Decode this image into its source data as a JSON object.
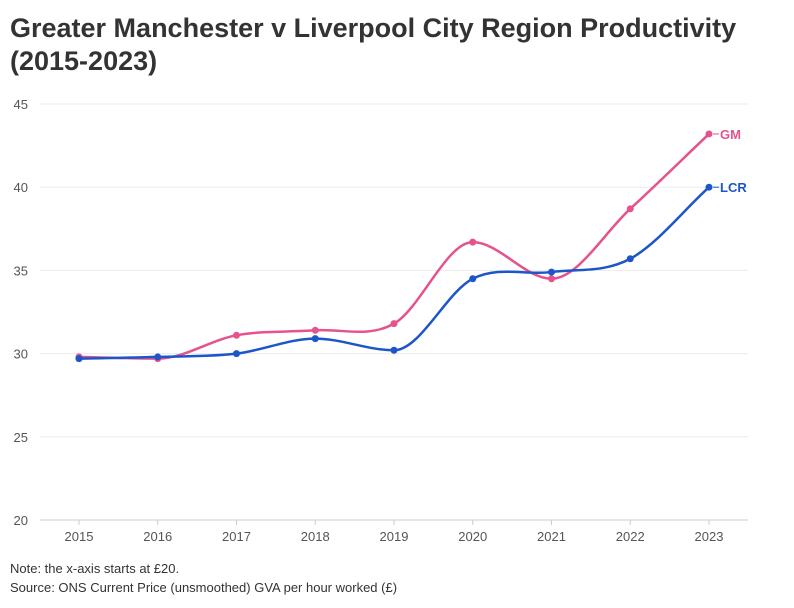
{
  "chart_data": {
    "type": "line",
    "title": "Greater Manchester v Liverpool City Region Productivity (2015-2023)",
    "xlabel": "",
    "ylabel": "",
    "x": [
      "2015",
      "2016",
      "2017",
      "2018",
      "2019",
      "2020",
      "2021",
      "2022",
      "2023"
    ],
    "yticks": [
      "20",
      "25",
      "30",
      "35",
      "40",
      "45"
    ],
    "ylim": [
      20,
      45
    ],
    "grid": true,
    "series": [
      {
        "name": "GM",
        "color": "#e5528e",
        "values": [
          29.8,
          29.7,
          31.1,
          31.4,
          31.8,
          36.7,
          34.5,
          38.7,
          43.2
        ]
      },
      {
        "name": "LCR",
        "color": "#1d56c9",
        "values": [
          29.7,
          29.8,
          30.0,
          30.9,
          30.2,
          34.5,
          34.9,
          35.7,
          40.0
        ]
      }
    ]
  },
  "notes": {
    "note": "Note: the x-axis starts at £20.",
    "source": "Source: ONS Current Price (unsmoothed) GVA per hour worked (£)"
  }
}
